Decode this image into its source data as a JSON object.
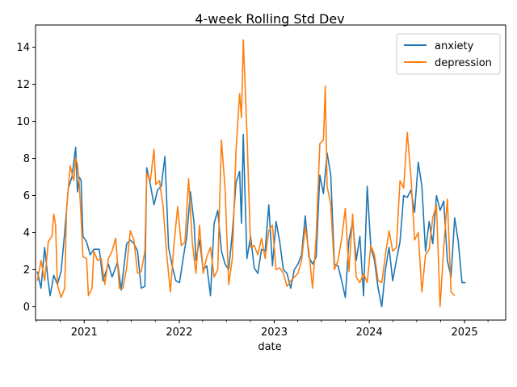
{
  "chart_data": {
    "type": "line",
    "title": "4-week Rolling Std Dev",
    "xlabel": "date",
    "ylabel": "",
    "xlim": [
      "2020-06-28",
      "2025-06-08"
    ],
    "ylim": [
      -0.72,
      15.2
    ],
    "x_ticks": [
      "2021",
      "2022",
      "2023",
      "2024",
      "2025"
    ],
    "y_ticks": [
      0,
      2,
      4,
      6,
      8,
      10,
      12,
      14
    ],
    "legend_position": "upper-right",
    "grid": false,
    "series": [
      {
        "name": "anxiety",
        "color": "#1f77b4",
        "points": [
          [
            "2020-07-05",
            1.9
          ],
          [
            "2020-07-19",
            1.0
          ],
          [
            "2020-08-02",
            3.2
          ],
          [
            "2020-08-16",
            1.3
          ],
          [
            "2020-08-23",
            0.6
          ],
          [
            "2020-09-06",
            1.7
          ],
          [
            "2020-09-20",
            1.2
          ],
          [
            "2020-10-04",
            1.9
          ],
          [
            "2020-10-18",
            4.0
          ],
          [
            "2020-11-01",
            6.4
          ],
          [
            "2020-11-15",
            7.0
          ],
          [
            "2020-11-29",
            8.6
          ],
          [
            "2020-12-06",
            6.2
          ],
          [
            "2020-12-13",
            7.0
          ],
          [
            "2020-12-20",
            6.8
          ],
          [
            "2020-12-27",
            3.8
          ],
          [
            "2021-01-10",
            3.5
          ],
          [
            "2021-01-24",
            2.8
          ],
          [
            "2021-02-07",
            3.1
          ],
          [
            "2021-02-28",
            3.1
          ],
          [
            "2021-03-14",
            1.4
          ],
          [
            "2021-04-04",
            2.3
          ],
          [
            "2021-04-18",
            1.6
          ],
          [
            "2021-05-09",
            2.4
          ],
          [
            "2021-05-23",
            0.9
          ],
          [
            "2021-06-13",
            3.4
          ],
          [
            "2021-06-27",
            3.6
          ],
          [
            "2021-07-11",
            3.4
          ],
          [
            "2021-07-25",
            3.0
          ],
          [
            "2021-08-08",
            1.0
          ],
          [
            "2021-08-22",
            1.1
          ],
          [
            "2021-08-29",
            7.5
          ],
          [
            "2021-09-12",
            6.6
          ],
          [
            "2021-09-26",
            5.5
          ],
          [
            "2021-10-10",
            6.3
          ],
          [
            "2021-10-24",
            6.5
          ],
          [
            "2021-11-07",
            8.1
          ],
          [
            "2021-11-21",
            3.2
          ],
          [
            "2021-12-05",
            2.2
          ],
          [
            "2021-12-19",
            1.4
          ],
          [
            "2022-01-02",
            1.3
          ],
          [
            "2022-01-16",
            2.6
          ],
          [
            "2022-01-30",
            3.8
          ],
          [
            "2022-02-13",
            6.2
          ],
          [
            "2022-02-27",
            4.5
          ],
          [
            "2022-03-06",
            2.5
          ],
          [
            "2022-03-20",
            3.6
          ],
          [
            "2022-04-03",
            2.0
          ],
          [
            "2022-04-17",
            2.2
          ],
          [
            "2022-05-01",
            0.6
          ],
          [
            "2022-05-15",
            4.5
          ],
          [
            "2022-05-29",
            5.2
          ],
          [
            "2022-06-12",
            3.0
          ],
          [
            "2022-06-26",
            2.3
          ],
          [
            "2022-07-10",
            2.0
          ],
          [
            "2022-07-24",
            4.0
          ],
          [
            "2022-08-07",
            6.7
          ],
          [
            "2022-08-21",
            7.3
          ],
          [
            "2022-08-28",
            4.5
          ],
          [
            "2022-09-04",
            9.3
          ],
          [
            "2022-09-18",
            2.6
          ],
          [
            "2022-10-02",
            3.8
          ],
          [
            "2022-10-16",
            2.1
          ],
          [
            "2022-10-30",
            1.8
          ],
          [
            "2022-11-13",
            3.1
          ],
          [
            "2022-11-27",
            3.0
          ],
          [
            "2022-12-11",
            5.5
          ],
          [
            "2022-12-25",
            2.2
          ],
          [
            "2023-01-08",
            4.6
          ],
          [
            "2023-01-22",
            3.5
          ],
          [
            "2023-02-05",
            2.0
          ],
          [
            "2023-02-19",
            1.8
          ],
          [
            "2023-03-05",
            1.0
          ],
          [
            "2023-03-19",
            2.0
          ],
          [
            "2023-04-02",
            2.3
          ],
          [
            "2023-04-16",
            2.8
          ],
          [
            "2023-04-30",
            4.9
          ],
          [
            "2023-05-14",
            2.7
          ],
          [
            "2023-05-28",
            2.3
          ],
          [
            "2023-06-11",
            2.7
          ],
          [
            "2023-06-25",
            7.1
          ],
          [
            "2023-07-09",
            6.1
          ],
          [
            "2023-07-23",
            8.3
          ],
          [
            "2023-08-06",
            7.1
          ],
          [
            "2023-08-20",
            2.3
          ],
          [
            "2023-09-03",
            2.2
          ],
          [
            "2023-09-17",
            1.4
          ],
          [
            "2023-10-01",
            0.5
          ],
          [
            "2023-10-15",
            3.6
          ],
          [
            "2023-10-29",
            4.6
          ],
          [
            "2023-11-12",
            2.5
          ],
          [
            "2023-11-26",
            3.8
          ],
          [
            "2023-12-10",
            0.6
          ],
          [
            "2023-12-24",
            6.5
          ],
          [
            "2024-01-07",
            3.2
          ],
          [
            "2024-01-21",
            2.5
          ],
          [
            "2024-02-04",
            1.0
          ],
          [
            "2024-02-18",
            0.0
          ],
          [
            "2024-03-03",
            2.0
          ],
          [
            "2024-03-17",
            3.2
          ],
          [
            "2024-03-31",
            1.4
          ],
          [
            "2024-04-14",
            2.5
          ],
          [
            "2024-04-28",
            3.5
          ],
          [
            "2024-05-12",
            6.0
          ],
          [
            "2024-05-26",
            5.9
          ],
          [
            "2024-06-09",
            6.3
          ],
          [
            "2024-06-23",
            5.1
          ],
          [
            "2024-07-07",
            7.8
          ],
          [
            "2024-07-21",
            6.5
          ],
          [
            "2024-08-04",
            3.0
          ],
          [
            "2024-08-18",
            4.6
          ],
          [
            "2024-09-01",
            3.4
          ],
          [
            "2024-09-15",
            6.0
          ],
          [
            "2024-09-29",
            5.2
          ],
          [
            "2024-10-13",
            5.7
          ],
          [
            "2024-10-27",
            2.5
          ],
          [
            "2024-11-10",
            1.6
          ],
          [
            "2024-11-24",
            4.8
          ],
          [
            "2024-12-08",
            3.5
          ],
          [
            "2024-12-22",
            1.3
          ],
          [
            "2025-01-05",
            1.3
          ]
        ]
      },
      {
        "name": "depression",
        "color": "#ff7f0e",
        "points": [
          [
            "2020-07-05",
            1.4
          ],
          [
            "2020-07-19",
            2.5
          ],
          [
            "2020-08-02",
            1.4
          ],
          [
            "2020-08-16",
            3.5
          ],
          [
            "2020-08-30",
            3.8
          ],
          [
            "2020-09-06",
            5.0
          ],
          [
            "2020-09-13",
            4.4
          ],
          [
            "2020-09-20",
            1.2
          ],
          [
            "2020-10-04",
            0.5
          ],
          [
            "2020-10-18",
            1.0
          ],
          [
            "2020-10-25",
            5.2
          ],
          [
            "2020-11-08",
            7.6
          ],
          [
            "2020-11-22",
            6.8
          ],
          [
            "2020-11-29",
            8.0
          ],
          [
            "2020-12-06",
            7.7
          ],
          [
            "2020-12-13",
            6.6
          ],
          [
            "2020-12-20",
            4.8
          ],
          [
            "2020-12-27",
            2.7
          ],
          [
            "2021-01-10",
            2.6
          ],
          [
            "2021-01-17",
            0.6
          ],
          [
            "2021-01-31",
            1.0
          ],
          [
            "2021-02-07",
            3.0
          ],
          [
            "2021-02-21",
            2.5
          ],
          [
            "2021-03-07",
            2.6
          ],
          [
            "2021-03-21",
            1.2
          ],
          [
            "2021-04-04",
            2.6
          ],
          [
            "2021-04-18",
            3.0
          ],
          [
            "2021-05-02",
            3.7
          ],
          [
            "2021-05-16",
            1.0
          ],
          [
            "2021-05-30",
            1.0
          ],
          [
            "2021-06-13",
            2.1
          ],
          [
            "2021-06-27",
            4.1
          ],
          [
            "2021-07-11",
            3.6
          ],
          [
            "2021-07-25",
            1.8
          ],
          [
            "2021-08-08",
            1.9
          ],
          [
            "2021-08-22",
            3.0
          ],
          [
            "2021-08-29",
            7.2
          ],
          [
            "2021-09-12",
            6.8
          ],
          [
            "2021-09-26",
            8.5
          ],
          [
            "2021-10-03",
            6.6
          ],
          [
            "2021-10-17",
            6.8
          ],
          [
            "2021-10-31",
            5.4
          ],
          [
            "2021-11-14",
            2.8
          ],
          [
            "2021-11-28",
            0.8
          ],
          [
            "2021-12-12",
            3.4
          ],
          [
            "2021-12-26",
            5.4
          ],
          [
            "2022-01-09",
            3.3
          ],
          [
            "2022-01-23",
            3.5
          ],
          [
            "2022-02-06",
            6.9
          ],
          [
            "2022-02-20",
            3.5
          ],
          [
            "2022-03-06",
            1.8
          ],
          [
            "2022-03-20",
            4.4
          ],
          [
            "2022-04-03",
            1.8
          ],
          [
            "2022-04-17",
            2.7
          ],
          [
            "2022-05-01",
            3.2
          ],
          [
            "2022-05-15",
            1.6
          ],
          [
            "2022-05-29",
            2.0
          ],
          [
            "2022-06-12",
            9.0
          ],
          [
            "2022-06-26",
            6.4
          ],
          [
            "2022-07-10",
            1.2
          ],
          [
            "2022-07-24",
            2.6
          ],
          [
            "2022-08-07",
            8.4
          ],
          [
            "2022-08-21",
            11.5
          ],
          [
            "2022-08-28",
            10.2
          ],
          [
            "2022-09-04",
            14.4
          ],
          [
            "2022-09-18",
            9.4
          ],
          [
            "2022-10-02",
            3.2
          ],
          [
            "2022-10-16",
            3.3
          ],
          [
            "2022-10-30",
            2.8
          ],
          [
            "2022-11-13",
            3.7
          ],
          [
            "2022-11-27",
            2.6
          ],
          [
            "2022-12-11",
            4.1
          ],
          [
            "2022-12-25",
            4.4
          ],
          [
            "2023-01-08",
            2.0
          ],
          [
            "2023-01-22",
            2.1
          ],
          [
            "2023-02-05",
            1.8
          ],
          [
            "2023-02-19",
            1.1
          ],
          [
            "2023-03-05",
            1.4
          ],
          [
            "2023-03-19",
            1.6
          ],
          [
            "2023-04-02",
            1.8
          ],
          [
            "2023-04-16",
            2.5
          ],
          [
            "2023-04-30",
            4.3
          ],
          [
            "2023-05-14",
            3.0
          ],
          [
            "2023-05-28",
            1.0
          ],
          [
            "2023-06-11",
            3.8
          ],
          [
            "2023-06-25",
            8.8
          ],
          [
            "2023-07-09",
            9.0
          ],
          [
            "2023-07-16",
            11.9
          ],
          [
            "2023-07-23",
            6.5
          ],
          [
            "2023-08-06",
            5.5
          ],
          [
            "2023-08-20",
            2.0
          ],
          [
            "2023-09-03",
            2.5
          ],
          [
            "2023-09-17",
            3.7
          ],
          [
            "2023-10-01",
            5.3
          ],
          [
            "2023-10-15",
            1.9
          ],
          [
            "2023-10-29",
            5.0
          ],
          [
            "2023-11-12",
            1.6
          ],
          [
            "2023-11-26",
            1.3
          ],
          [
            "2023-12-10",
            1.8
          ],
          [
            "2023-12-24",
            1.3
          ],
          [
            "2024-01-07",
            3.3
          ],
          [
            "2024-01-21",
            2.8
          ],
          [
            "2024-02-04",
            1.4
          ],
          [
            "2024-02-18",
            1.3
          ],
          [
            "2024-03-03",
            2.8
          ],
          [
            "2024-03-17",
            4.1
          ],
          [
            "2024-03-31",
            3.0
          ],
          [
            "2024-04-14",
            3.2
          ],
          [
            "2024-04-28",
            6.8
          ],
          [
            "2024-05-12",
            6.4
          ],
          [
            "2024-05-26",
            9.4
          ],
          [
            "2024-06-09",
            7.0
          ],
          [
            "2024-06-23",
            3.6
          ],
          [
            "2024-07-07",
            4.0
          ],
          [
            "2024-07-21",
            0.8
          ],
          [
            "2024-08-04",
            2.8
          ],
          [
            "2024-08-18",
            3.1
          ],
          [
            "2024-09-01",
            4.8
          ],
          [
            "2024-09-15",
            5.5
          ],
          [
            "2024-09-29",
            0.0
          ],
          [
            "2024-10-13",
            3.2
          ],
          [
            "2024-10-27",
            5.8
          ],
          [
            "2024-11-10",
            0.8
          ],
          [
            "2024-11-24",
            0.6
          ]
        ]
      }
    ]
  }
}
